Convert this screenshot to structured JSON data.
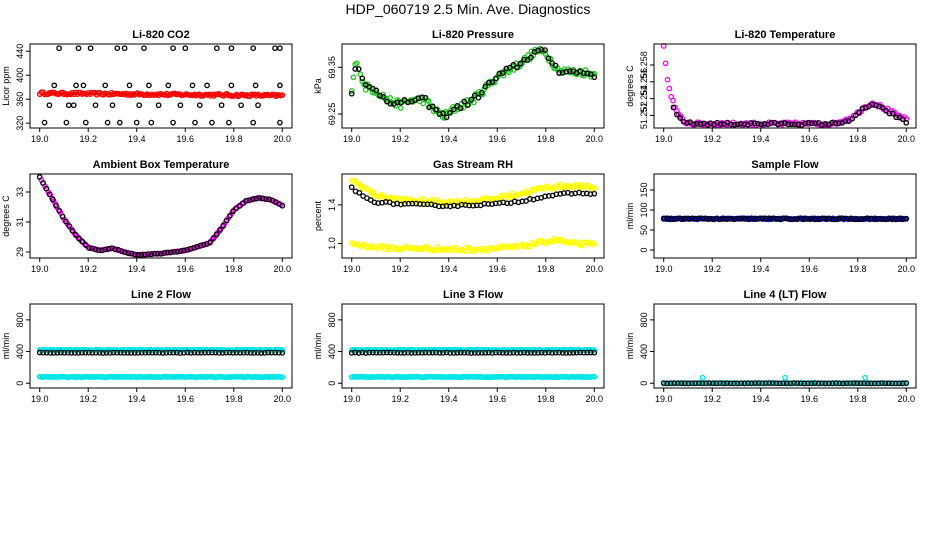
{
  "page": {
    "title": "HDP_060719  2.5 Min. Ave. Diagnostics"
  },
  "colors": {
    "black": "#000000",
    "red": "#ff0000",
    "green": "#22c422",
    "magenta": "#ff00ff",
    "yellow": "#ffff00",
    "blue": "#0000cc",
    "cyan": "#00e5e5"
  },
  "chart_data": [
    {
      "id": "co2",
      "type": "scatter",
      "title": "Li-820 CO2",
      "ylabel": "Licor ppm",
      "xlim": [
        18.96,
        20.04
      ],
      "ylim": [
        312,
        452
      ],
      "xticks": [
        "19.0",
        "19.2",
        "19.4",
        "19.6",
        "19.8",
        "20.0"
      ],
      "xtick_values": [
        19.0,
        19.2,
        19.4,
        19.6,
        19.8,
        20.0
      ],
      "yticks": [
        "320",
        "360",
        "400",
        "440"
      ],
      "ytick_values": [
        320,
        360,
        400,
        440
      ],
      "series": [
        {
          "name": "line-red",
          "color": "red",
          "kind": "band",
          "y": 370,
          "y_end": 366,
          "jitter": 2.0,
          "n": 150
        },
        {
          "name": "black-top",
          "color": "black",
          "kind": "points",
          "x": [
            19.08,
            19.16,
            19.21,
            19.32,
            19.35,
            19.43,
            19.55,
            19.6,
            19.73,
            19.79,
            19.88,
            19.97,
            19.99
          ],
          "y": [
            445,
            445,
            445,
            445,
            445,
            445,
            445,
            445,
            445,
            445,
            445,
            445,
            445
          ]
        },
        {
          "name": "black-mid",
          "color": "black",
          "kind": "points",
          "x": [
            19.06,
            19.15,
            19.18,
            19.27,
            19.37,
            19.45,
            19.53,
            19.63,
            19.69,
            19.79,
            19.89,
            19.99
          ],
          "y": [
            383,
            383,
            383,
            383,
            383,
            383,
            383,
            383,
            383,
            383,
            383,
            383
          ]
        },
        {
          "name": "black-low",
          "color": "black",
          "kind": "points",
          "x": [
            19.04,
            19.12,
            19.14,
            19.23,
            19.3,
            19.41,
            19.49,
            19.58,
            19.66,
            19.75,
            19.83,
            19.9
          ],
          "y": [
            350,
            350,
            350,
            350,
            350,
            350,
            350,
            350,
            350,
            350,
            350,
            350
          ]
        },
        {
          "name": "black-bottom",
          "color": "black",
          "kind": "points",
          "x": [
            19.02,
            19.11,
            19.19,
            19.28,
            19.33,
            19.4,
            19.46,
            19.55,
            19.64,
            19.71,
            19.78,
            19.88,
            19.99
          ],
          "y": [
            321,
            321,
            321,
            321,
            321,
            321,
            321,
            321,
            321,
            321,
            321,
            321,
            321
          ]
        }
      ]
    },
    {
      "id": "pressure",
      "type": "scatter",
      "title": "Li-820 Pressure",
      "ylabel": "kPa",
      "xlim": [
        18.96,
        20.04
      ],
      "ylim": [
        69.22,
        69.4
      ],
      "xticks": [
        "19.0",
        "19.2",
        "19.4",
        "19.6",
        "19.8",
        "20.0"
      ],
      "xtick_values": [
        19.0,
        19.2,
        19.4,
        19.6,
        19.8,
        20.0
      ],
      "yticks": [
        "69.25",
        "69.35"
      ],
      "ytick_values": [
        69.25,
        69.35
      ],
      "series": [
        {
          "name": "green",
          "color": "green",
          "kind": "curve",
          "n": 140,
          "jitter": 0.008,
          "knots_x": [
            19.0,
            19.02,
            19.05,
            19.1,
            19.15,
            19.2,
            19.25,
            19.3,
            19.35,
            19.38,
            19.42,
            19.5,
            19.6,
            19.7,
            19.76,
            19.8,
            19.85,
            19.9,
            19.95,
            20.0
          ],
          "knots_y": [
            69.3,
            69.37,
            69.31,
            69.3,
            69.28,
            69.27,
            69.28,
            69.28,
            69.255,
            69.245,
            69.26,
            69.28,
            69.33,
            69.36,
            69.385,
            69.38,
            69.345,
            69.34,
            69.34,
            69.335
          ]
        },
        {
          "name": "black",
          "color": "black",
          "kind": "curve",
          "n": 70,
          "jitter": 0.007,
          "knots_x": [
            19.0,
            19.02,
            19.05,
            19.1,
            19.15,
            19.2,
            19.25,
            19.3,
            19.35,
            19.38,
            19.42,
            19.5,
            19.6,
            19.7,
            19.76,
            19.8,
            19.85,
            19.9,
            19.95,
            20.0
          ],
          "knots_y": [
            69.3,
            69.37,
            69.31,
            69.3,
            69.28,
            69.27,
            69.28,
            69.28,
            69.255,
            69.245,
            69.26,
            69.28,
            69.33,
            69.36,
            69.385,
            69.38,
            69.345,
            69.34,
            69.34,
            69.335
          ]
        }
      ]
    },
    {
      "id": "licor-temp",
      "type": "scatter",
      "title": "Li-820 Temperature",
      "ylabel": "degrees C",
      "xlim": [
        18.96,
        20.04
      ],
      "ylim": [
        51.2505,
        51.2605
      ],
      "xticks": [
        "19.0",
        "19.2",
        "19.4",
        "19.6",
        "19.8",
        "20.0"
      ],
      "xtick_values": [
        19.0,
        19.2,
        19.4,
        19.6,
        19.8,
        20.0
      ],
      "yticks": [
        "51.252",
        "51.254",
        "51.256",
        "51.258"
      ],
      "ytick_values": [
        51.252,
        51.254,
        51.256,
        51.258
      ],
      "series": [
        {
          "name": "magenta",
          "color": "magenta",
          "kind": "curve",
          "n": 130,
          "jitter": 0.0002,
          "knots_x": [
            19.0,
            19.01,
            19.02,
            19.04,
            19.06,
            19.09,
            19.12,
            19.3,
            19.5,
            19.7,
            19.78,
            19.82,
            19.86,
            19.9,
            19.95,
            20.0
          ],
          "knots_y": [
            51.2605,
            51.2575,
            51.2555,
            51.2535,
            51.252,
            51.2512,
            51.251,
            51.251,
            51.251,
            51.251,
            51.2518,
            51.2528,
            51.2535,
            51.253,
            51.2522,
            51.2515
          ]
        },
        {
          "name": "black",
          "color": "black",
          "kind": "curve",
          "n": 70,
          "jitter": 0.00015,
          "knots_x": [
            19.04,
            19.06,
            19.09,
            19.12,
            19.3,
            19.5,
            19.7,
            19.78,
            19.82,
            19.86,
            19.9,
            19.95,
            20.0
          ],
          "knots_y": [
            51.2528,
            51.2518,
            51.2512,
            51.251,
            51.251,
            51.251,
            51.251,
            51.2515,
            51.2528,
            51.2533,
            51.2528,
            51.252,
            51.2512
          ]
        }
      ]
    },
    {
      "id": "box-temp",
      "type": "scatter",
      "title": "Ambient Box Temperature",
      "ylabel": "degrees C",
      "xlim": [
        18.96,
        20.04
      ],
      "ylim": [
        28.6,
        34.2
      ],
      "xticks": [
        "19.0",
        "19.2",
        "19.4",
        "19.6",
        "19.8",
        "20.0"
      ],
      "xtick_values": [
        19.0,
        19.2,
        19.4,
        19.6,
        19.8,
        20.0
      ],
      "yticks": [
        "29",
        "31",
        "33"
      ],
      "ytick_values": [
        29,
        31,
        33
      ],
      "series": [
        {
          "name": "magenta",
          "color": "magenta",
          "kind": "curve",
          "n": 140,
          "jitter": 0.02,
          "knots_x": [
            19.0,
            19.05,
            19.1,
            19.15,
            19.2,
            19.25,
            19.3,
            19.35,
            19.4,
            19.5,
            19.6,
            19.7,
            19.75,
            19.8,
            19.85,
            19.9,
            19.95,
            20.0
          ],
          "knots_y": [
            34.0,
            32.6,
            31.2,
            30.1,
            29.3,
            29.1,
            29.25,
            29.0,
            28.8,
            28.9,
            29.1,
            29.6,
            30.6,
            31.8,
            32.4,
            32.6,
            32.5,
            32.1
          ]
        },
        {
          "name": "black",
          "color": "black",
          "kind": "curve",
          "n": 75,
          "jitter": 0.02,
          "knots_x": [
            19.0,
            19.05,
            19.1,
            19.15,
            19.2,
            19.25,
            19.3,
            19.35,
            19.4,
            19.5,
            19.6,
            19.7,
            19.75,
            19.8,
            19.85,
            19.9,
            19.95,
            20.0
          ],
          "knots_y": [
            34.0,
            32.6,
            31.2,
            30.1,
            29.3,
            29.1,
            29.25,
            29.0,
            28.8,
            28.9,
            29.1,
            29.6,
            30.6,
            31.8,
            32.4,
            32.6,
            32.5,
            32.1
          ]
        }
      ]
    },
    {
      "id": "rh",
      "type": "scatter",
      "title": "Gas Stream RH",
      "ylabel": "percent",
      "xlim": [
        18.96,
        20.04
      ],
      "ylim": [
        0.85,
        1.72
      ],
      "xticks": [
        "19.0",
        "19.2",
        "19.4",
        "19.6",
        "19.8",
        "20.0"
      ],
      "xtick_values": [
        19.0,
        19.2,
        19.4,
        19.6,
        19.8,
        20.0
      ],
      "yticks": [
        "1.0",
        "1.4"
      ],
      "ytick_values": [
        1.0,
        1.4
      ],
      "series": [
        {
          "name": "yellow-upper",
          "color": "yellow",
          "kind": "curve",
          "n": 140,
          "jitter": 0.02,
          "knots_x": [
            19.0,
            19.05,
            19.1,
            19.2,
            19.3,
            19.4,
            19.5,
            19.6,
            19.7,
            19.8,
            19.9,
            20.0
          ],
          "knots_y": [
            1.66,
            1.58,
            1.5,
            1.45,
            1.44,
            1.43,
            1.44,
            1.47,
            1.52,
            1.58,
            1.6,
            1.58
          ]
        },
        {
          "name": "yellow-lower",
          "color": "yellow",
          "kind": "curve",
          "n": 140,
          "jitter": 0.02,
          "knots_x": [
            19.0,
            19.05,
            19.1,
            19.2,
            19.3,
            19.4,
            19.5,
            19.6,
            19.7,
            19.8,
            19.85,
            19.9,
            20.0
          ],
          "knots_y": [
            1.0,
            0.98,
            0.96,
            0.95,
            0.95,
            0.94,
            0.94,
            0.95,
            0.97,
            1.02,
            1.04,
            1.0,
            0.99
          ]
        },
        {
          "name": "black",
          "color": "black",
          "kind": "curve",
          "n": 65,
          "jitter": 0.01,
          "knots_x": [
            19.0,
            19.05,
            19.1,
            19.2,
            19.3,
            19.4,
            19.5,
            19.6,
            19.7,
            19.8,
            19.9,
            20.0
          ],
          "knots_y": [
            1.58,
            1.48,
            1.43,
            1.41,
            1.4,
            1.39,
            1.4,
            1.41,
            1.44,
            1.49,
            1.52,
            1.52
          ]
        }
      ]
    },
    {
      "id": "sample-flow",
      "type": "scatter",
      "title": "Sample Flow",
      "ylabel": "ml/min",
      "xlim": [
        18.96,
        20.04
      ],
      "ylim": [
        -20,
        190
      ],
      "xticks": [
        "19.0",
        "19.2",
        "19.4",
        "19.6",
        "19.8",
        "20.0"
      ],
      "xtick_values": [
        19.0,
        19.2,
        19.4,
        19.6,
        19.8,
        20.0
      ],
      "yticks": [
        "0",
        "50",
        "100",
        "150"
      ],
      "ytick_values": [
        0,
        50,
        100,
        150
      ],
      "series": [
        {
          "name": "blue",
          "color": "blue",
          "kind": "band",
          "y": 78,
          "y_end": 78,
          "jitter": 1.5,
          "n": 160
        },
        {
          "name": "black",
          "color": "black",
          "kind": "band",
          "y": 78,
          "y_end": 78,
          "jitter": 1.5,
          "n": 70
        }
      ]
    },
    {
      "id": "line2",
      "type": "scatter",
      "title": "Line 2 Flow",
      "ylabel": "ml/min",
      "xlim": [
        18.96,
        20.04
      ],
      "ylim": [
        -60,
        1000
      ],
      "xticks": [
        "19.0",
        "19.2",
        "19.4",
        "19.6",
        "19.8",
        "20.0"
      ],
      "xtick_values": [
        19.0,
        19.2,
        19.4,
        19.6,
        19.8,
        20.0
      ],
      "yticks": [
        "0",
        "400",
        "800"
      ],
      "ytick_values": [
        0,
        400,
        800
      ],
      "series": [
        {
          "name": "cyan-upper",
          "color": "cyan",
          "kind": "band",
          "y": 420,
          "y_end": 420,
          "jitter": 4,
          "n": 160
        },
        {
          "name": "cyan-lower",
          "color": "cyan",
          "kind": "band",
          "y": 80,
          "y_end": 80,
          "jitter": 4,
          "n": 160
        },
        {
          "name": "black",
          "color": "black",
          "kind": "band",
          "y": 385,
          "y_end": 385,
          "jitter": 3,
          "n": 70
        }
      ]
    },
    {
      "id": "line3",
      "type": "scatter",
      "title": "Line 3 Flow",
      "ylabel": "ml/min",
      "xlim": [
        18.96,
        20.04
      ],
      "ylim": [
        -60,
        1000
      ],
      "xticks": [
        "19.0",
        "19.2",
        "19.4",
        "19.6",
        "19.8",
        "20.0"
      ],
      "xtick_values": [
        19.0,
        19.2,
        19.4,
        19.6,
        19.8,
        20.0
      ],
      "yticks": [
        "0",
        "400",
        "800"
      ],
      "ytick_values": [
        0,
        400,
        800
      ],
      "series": [
        {
          "name": "cyan-upper",
          "color": "cyan",
          "kind": "band",
          "y": 420,
          "y_end": 420,
          "jitter": 4,
          "n": 160
        },
        {
          "name": "cyan-lower",
          "color": "cyan",
          "kind": "band",
          "y": 80,
          "y_end": 80,
          "jitter": 4,
          "n": 160
        },
        {
          "name": "black",
          "color": "black",
          "kind": "band",
          "y": 385,
          "y_end": 385,
          "jitter": 3,
          "n": 70
        }
      ]
    },
    {
      "id": "line4",
      "type": "scatter",
      "title": "Line 4 (LT) Flow",
      "ylabel": "ml/min",
      "xlim": [
        18.96,
        20.04
      ],
      "ylim": [
        -60,
        1000
      ],
      "xticks": [
        "19.0",
        "19.2",
        "19.4",
        "19.6",
        "19.8",
        "20.0"
      ],
      "xtick_values": [
        19.0,
        19.2,
        19.4,
        19.6,
        19.8,
        20.0
      ],
      "yticks": [
        "0",
        "400",
        "800"
      ],
      "ytick_values": [
        0,
        400,
        800
      ],
      "series": [
        {
          "name": "cyan",
          "color": "cyan",
          "kind": "band",
          "y": 0,
          "y_end": 0,
          "jitter": 3,
          "n": 150
        },
        {
          "name": "black",
          "color": "black",
          "kind": "band",
          "y": 0,
          "y_end": 0,
          "jitter": 2,
          "n": 70
        },
        {
          "name": "cyan-spikes",
          "color": "cyan",
          "kind": "points",
          "x": [
            19.16,
            19.5,
            19.83
          ],
          "y": [
            70,
            70,
            70
          ]
        }
      ]
    }
  ]
}
